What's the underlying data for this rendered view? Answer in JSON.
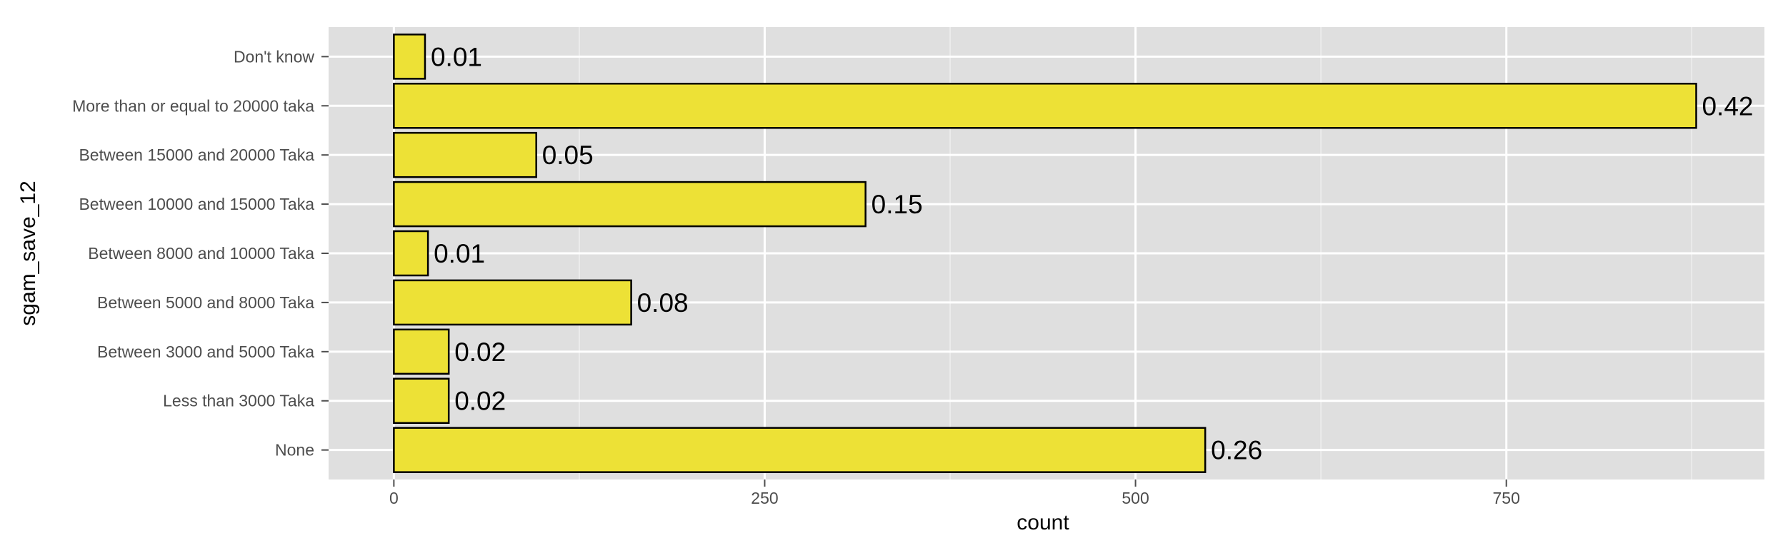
{
  "chart_data": {
    "type": "bar",
    "orientation": "horizontal",
    "title": "",
    "xlabel": "count",
    "ylabel": "sgam_save_12",
    "categories": [
      "None",
      "Less than 3000 Taka",
      "Between 3000 and 5000 Taka",
      "Between 5000  and 8000 Taka",
      "Between 8000  and 10000 Taka",
      "Between 10000 and 15000 Taka",
      "Between 15000 and 20000 Taka",
      "More than or equal to 20000 taka",
      "Don't know"
    ],
    "values": [
      547,
      37,
      37,
      160,
      23,
      318,
      96,
      878,
      21
    ],
    "data_labels": [
      "0.26",
      "0.02",
      "0.02",
      "0.08",
      "0.01",
      "0.15",
      "0.05",
      "0.42",
      "0.01"
    ],
    "xlim": [
      -44,
      924
    ],
    "xticks": [
      0,
      250,
      500,
      750
    ],
    "grid": true,
    "legend": "none",
    "colors": {
      "panel_background": "#dfdfdf",
      "grid_major": "#ffffff",
      "grid_minor": "#efefef",
      "bar_fill": "#ede136",
      "bar_outline": "#000000",
      "tick_text": "#4d4d4d",
      "axis_title": "#000000"
    }
  }
}
